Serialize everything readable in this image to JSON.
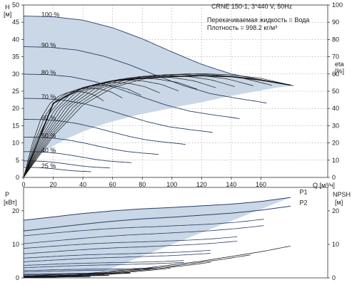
{
  "header": {
    "title": "CRNE 150-1, 3*440 V, 50Hz",
    "liquid": "Перекачиваемая жидкость = Вода",
    "density": "Плотность = 998.2 кг/м³"
  },
  "colors": {
    "region": "#c9d7e6",
    "curve": "#2b3f66",
    "axis": "#333333",
    "grid": "#888888"
  },
  "chart_data": [
    {
      "type": "line",
      "panel": "head",
      "ylabel_left": [
        "H",
        "[м]"
      ],
      "ylabel_right": [
        "eta",
        "[%]"
      ],
      "xlabel": "Q [м³/ч]",
      "xlim": [
        0,
        205
      ],
      "ylim": [
        0,
        50
      ],
      "ylim_right": [
        0,
        100
      ],
      "xticks": [
        0,
        20,
        40,
        60,
        80,
        100,
        120,
        140,
        160
      ],
      "yticks": [
        0,
        5,
        10,
        15,
        20,
        25,
        30,
        35,
        40,
        45,
        50
      ],
      "yticks_right": [
        0,
        10,
        20,
        30,
        40,
        50,
        60,
        70,
        80,
        90,
        100
      ],
      "grid": true,
      "speed_labels": [
        {
          "text": "100 %",
          "speed": 1.0
        },
        {
          "text": "90 %",
          "speed": 0.9
        },
        {
          "text": "80 %",
          "speed": 0.8
        },
        {
          "text": "70 %",
          "speed": 0.7
        },
        {
          "text": "60 %",
          "speed": 0.6
        },
        {
          "text": "50 %",
          "speed": 0.5
        },
        {
          "text": "40 %",
          "speed": 0.4
        },
        {
          "text": "25 %",
          "speed": 0.25
        }
      ],
      "head_curve_full_speed": {
        "q": [
          0,
          20,
          40,
          60,
          80,
          100,
          120,
          140,
          160,
          175,
          182
        ],
        "h": [
          46.8,
          46.6,
          45.6,
          43.4,
          40.2,
          36.4,
          32.8,
          30.0,
          28.3,
          27.2,
          26.6
        ]
      },
      "min_speed_q_end": 58,
      "head_speeds": [
        1.0,
        0.9,
        0.8,
        0.7,
        0.6,
        0.5,
        0.4,
        0.32,
        0.25
      ],
      "eta_speeds": [
        1.0,
        0.93,
        0.86,
        0.79,
        0.72,
        0.65,
        0.58,
        0.51,
        0.44,
        0.37,
        0.3
      ],
      "eta_curve_full_speed": {
        "q": [
          0,
          20,
          40,
          60,
          80,
          100,
          120,
          140,
          160,
          180
        ],
        "eta": [
          0,
          24,
          42,
          52,
          57,
          59.5,
          60.2,
          59.5,
          57.5,
          53.5
        ]
      },
      "eta_envelope": {
        "q": [
          0,
          20,
          40,
          60,
          80,
          100,
          120,
          140,
          160,
          180
        ],
        "eta": [
          0,
          43,
          52,
          56,
          57.5,
          58.5,
          59,
          58.5,
          56.5,
          53.5
        ]
      }
    },
    {
      "type": "line",
      "panel": "power",
      "ylabel_left": [
        "P",
        "[кВт]"
      ],
      "ylabel_right": [
        "NPSH",
        "[м]"
      ],
      "xlim": [
        0,
        205
      ],
      "ylim": [
        0,
        27
      ],
      "yticks": [
        0,
        10,
        20
      ],
      "yticks_right": [
        0,
        10,
        20
      ],
      "grid": false,
      "series_labels": [
        "P1",
        "P2"
      ],
      "p1_full_speed": {
        "q": [
          0,
          20,
          40,
          60,
          80,
          100,
          120,
          140,
          160,
          180
        ],
        "p": [
          17.2,
          18.2,
          19.2,
          20.0,
          20.6,
          21.0,
          21.5,
          22.0,
          22.8,
          24.0
        ]
      },
      "p2_full_speed": {
        "q": [
          0,
          20,
          40,
          60,
          80,
          100,
          120,
          140,
          160,
          180
        ],
        "p": [
          14.0,
          15.0,
          16.0,
          16.9,
          17.6,
          18.1,
          18.7,
          19.3,
          20.2,
          21.4
        ]
      },
      "p_speeds": [
        0.9,
        0.8,
        0.7,
        0.6,
        0.5,
        0.4,
        0.32,
        0.25
      ],
      "npsh": {
        "q": [
          0,
          40,
          80,
          120,
          160,
          180
        ],
        "v": [
          0.6,
          1.2,
          2.8,
          5.0,
          7.8,
          9.5
        ]
      }
    }
  ]
}
